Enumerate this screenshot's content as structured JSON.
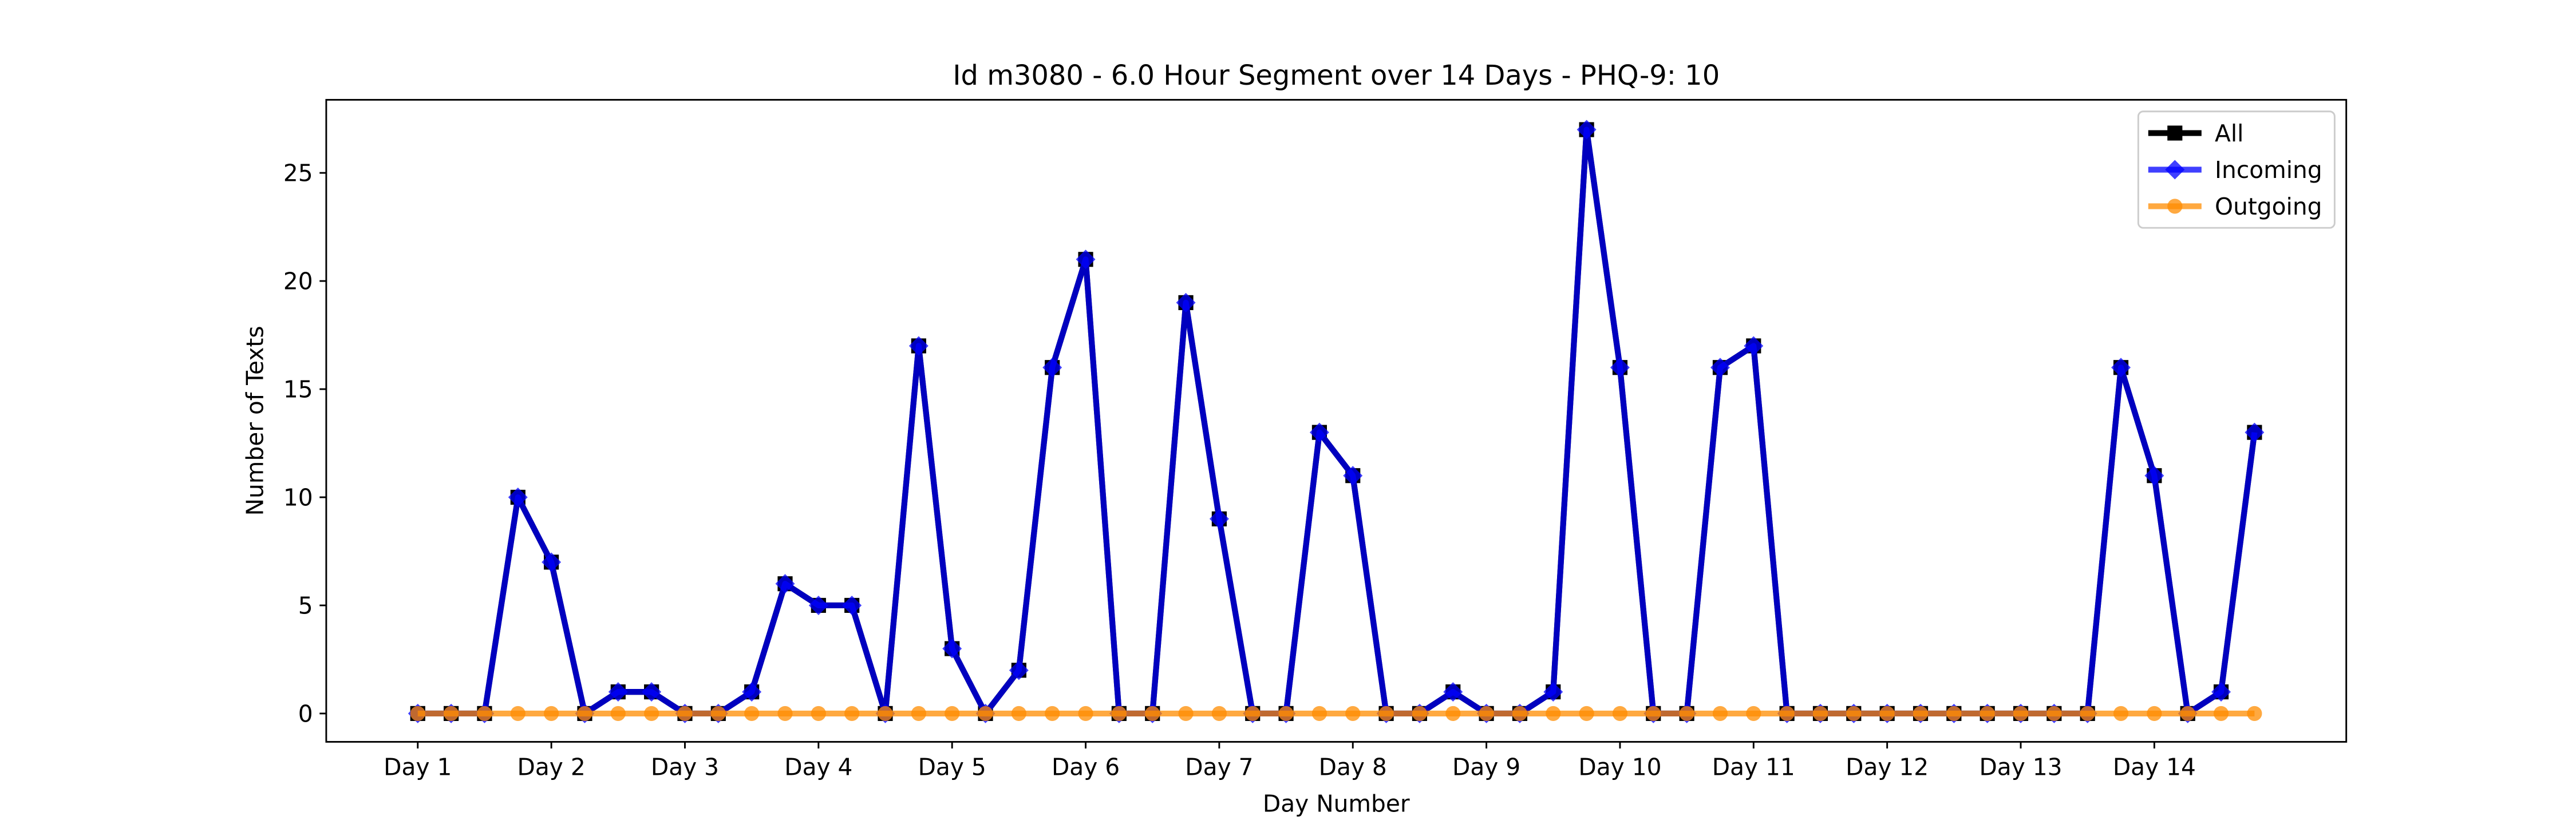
{
  "chart_data": {
    "type": "line",
    "title": "Id m3080 - 6.0 Hour Segment over 14 Days - PHQ-9: 10",
    "x_label": "Day Number",
    "y_label": "Number of Texts",
    "categories": [
      "Day 1",
      null,
      null,
      null,
      "Day 2",
      null,
      null,
      null,
      "Day 3",
      null,
      null,
      null,
      "Day 4",
      null,
      null,
      null,
      "Day 5",
      null,
      null,
      null,
      "Day 6",
      null,
      null,
      null,
      "Day 7",
      null,
      null,
      null,
      "Day 8",
      null,
      null,
      null,
      "Day 9",
      null,
      null,
      null,
      "Day 10",
      null,
      null,
      null,
      "Day 11",
      null,
      null,
      null,
      "Day 12",
      null,
      null,
      null,
      "Day 13",
      null,
      null,
      null,
      "Day 14",
      null,
      null,
      null
    ],
    "series": [
      {
        "name": "All",
        "color": "#000000",
        "marker": "square",
        "opacity": 1,
        "values": [
          0,
          0,
          0,
          10,
          7,
          0,
          1,
          1,
          0,
          0,
          1,
          6,
          5,
          5,
          0,
          17,
          3,
          0,
          2,
          16,
          21,
          0,
          0,
          19,
          9,
          0,
          0,
          13,
          11,
          0,
          0,
          1,
          0,
          0,
          1,
          27,
          16,
          0,
          0,
          16,
          17,
          0,
          0,
          0,
          0,
          0,
          0,
          0,
          0,
          0,
          0,
          16,
          11,
          0,
          1,
          13
        ]
      },
      {
        "name": "Incoming",
        "color": "#0000ff",
        "marker": "diamond",
        "opacity": 0.75,
        "values": [
          0,
          0,
          0,
          10,
          7,
          0,
          1,
          1,
          0,
          0,
          1,
          6,
          5,
          5,
          0,
          17,
          3,
          0,
          2,
          16,
          21,
          0,
          0,
          19,
          9,
          0,
          0,
          13,
          11,
          0,
          0,
          1,
          0,
          0,
          1,
          27,
          16,
          0,
          0,
          16,
          17,
          0,
          0,
          0,
          0,
          0,
          0,
          0,
          0,
          0,
          0,
          16,
          11,
          0,
          1,
          13
        ]
      },
      {
        "name": "Outgoing",
        "color": "#ff8c00",
        "marker": "circle",
        "opacity": 0.75,
        "values": [
          0,
          0,
          0,
          0,
          0,
          0,
          0,
          0,
          0,
          0,
          0,
          0,
          0,
          0,
          0,
          0,
          0,
          0,
          0,
          0,
          0,
          0,
          0,
          0,
          0,
          0,
          0,
          0,
          0,
          0,
          0,
          0,
          0,
          0,
          0,
          0,
          0,
          0,
          0,
          0,
          0,
          0,
          0,
          0,
          0,
          0,
          0,
          0,
          0,
          0,
          0,
          0,
          0,
          0,
          0,
          0
        ]
      }
    ],
    "ylim": [
      -1.31,
      28.38
    ],
    "yticks": [
      0,
      5,
      10,
      15,
      20,
      25
    ],
    "grid": false,
    "legend": "upper right"
  }
}
